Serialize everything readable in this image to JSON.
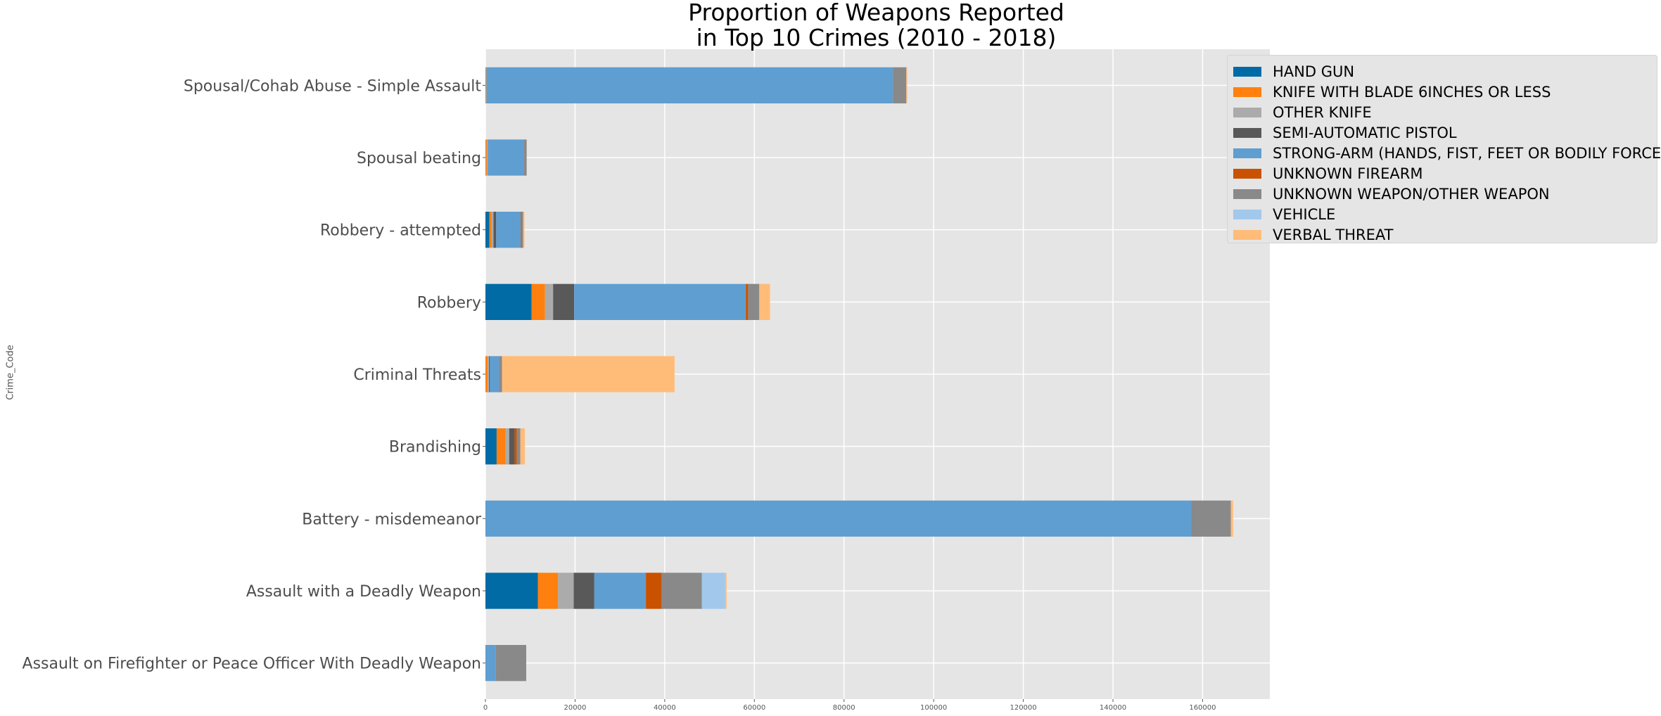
{
  "chart_data": {
    "type": "bar",
    "orientation": "horizontal",
    "stacked": true,
    "title": "Proportion of Weapons Reported\nin Top 10 Crimes (2010 - 2018)",
    "title_lines": [
      "Proportion of Weapons Reported",
      "in Top 10 Crimes (2010 - 2018)"
    ],
    "xlabel": "",
    "ylabel": "Crime_Code",
    "xlim": [
      0,
      175000
    ],
    "xticks": [
      0,
      20000,
      40000,
      60000,
      80000,
      100000,
      120000,
      140000,
      160000
    ],
    "grid": true,
    "legend_position": "top-right",
    "categories": [
      "Spousal/Cohab Abuse - Simple Assault",
      "Spousal beating",
      "Robbery - attempted",
      "Robbery",
      "Criminal Threats",
      "Brandishing",
      "Battery - misdemeanor",
      "Assault with a Deadly Weapon",
      "Assault on Firefighter or Peace Officer With Deadly Weapon"
    ],
    "series": [
      {
        "name": "HAND GUN",
        "color": "#006ba4",
        "values": [
          0,
          0,
          900,
          10300,
          0,
          2500,
          0,
          11700,
          0
        ]
      },
      {
        "name": "KNIFE WITH BLADE 6INCHES OR LESS",
        "color": "#ff800e",
        "values": [
          200,
          300,
          500,
          3000,
          500,
          2000,
          0,
          4500,
          0
        ]
      },
      {
        "name": "OTHER KNIFE",
        "color": "#ababab",
        "values": [
          0,
          200,
          400,
          1800,
          300,
          800,
          0,
          3500,
          0
        ]
      },
      {
        "name": "SEMI-AUTOMATIC PISTOL",
        "color": "#595959",
        "values": [
          0,
          0,
          600,
          4700,
          200,
          1200,
          0,
          4600,
          0
        ]
      },
      {
        "name": "STRONG-ARM (HANDS, FIST, FEET OR BODILY FORCE)",
        "color": "#5f9ed1",
        "values": [
          90700,
          8000,
          5500,
          38300,
          2000,
          0,
          157500,
          11500,
          2300
        ]
      },
      {
        "name": "UNKNOWN FIREARM",
        "color": "#c85200",
        "values": [
          0,
          0,
          200,
          500,
          0,
          500,
          0,
          3500,
          0
        ]
      },
      {
        "name": "UNKNOWN WEAPON/OTHER WEAPON",
        "color": "#898989",
        "values": [
          3000,
          700,
          300,
          2500,
          700,
          800,
          8800,
          9000,
          6800
        ]
      },
      {
        "name": "VEHICLE",
        "color": "#a2c8ec",
        "values": [
          0,
          0,
          0,
          0,
          0,
          0,
          0,
          5200,
          0
        ]
      },
      {
        "name": "VERBAL THREAT",
        "color": "#ffbc79",
        "values": [
          200,
          0,
          300,
          2400,
          38500,
          1000,
          500,
          300,
          0
        ]
      }
    ]
  }
}
